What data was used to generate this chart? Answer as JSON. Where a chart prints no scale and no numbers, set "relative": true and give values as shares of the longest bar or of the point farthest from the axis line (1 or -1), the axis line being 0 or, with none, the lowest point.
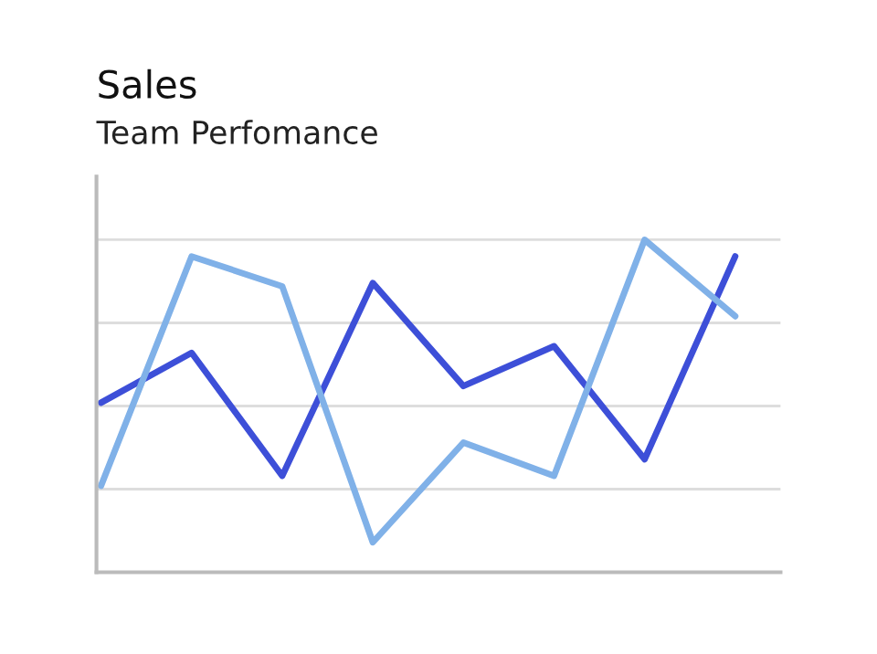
{
  "chart_data": {
    "type": "line",
    "title": "Sales",
    "subtitle": "Team Perfomance",
    "relative": true,
    "grid": "y",
    "categories": [
      null,
      null,
      null,
      null,
      null,
      null,
      null,
      null
    ],
    "series": [
      {
        "color": "#3d4fd8",
        "values": [
          0.51,
          0.66,
          0.29,
          0.87,
          0.56,
          0.68,
          0.34,
          0.95
        ]
      },
      {
        "color": "#80b1e8",
        "values": [
          0.26,
          0.95,
          0.86,
          0.09,
          0.39,
          0.29,
          1.0,
          0.77
        ]
      }
    ]
  }
}
